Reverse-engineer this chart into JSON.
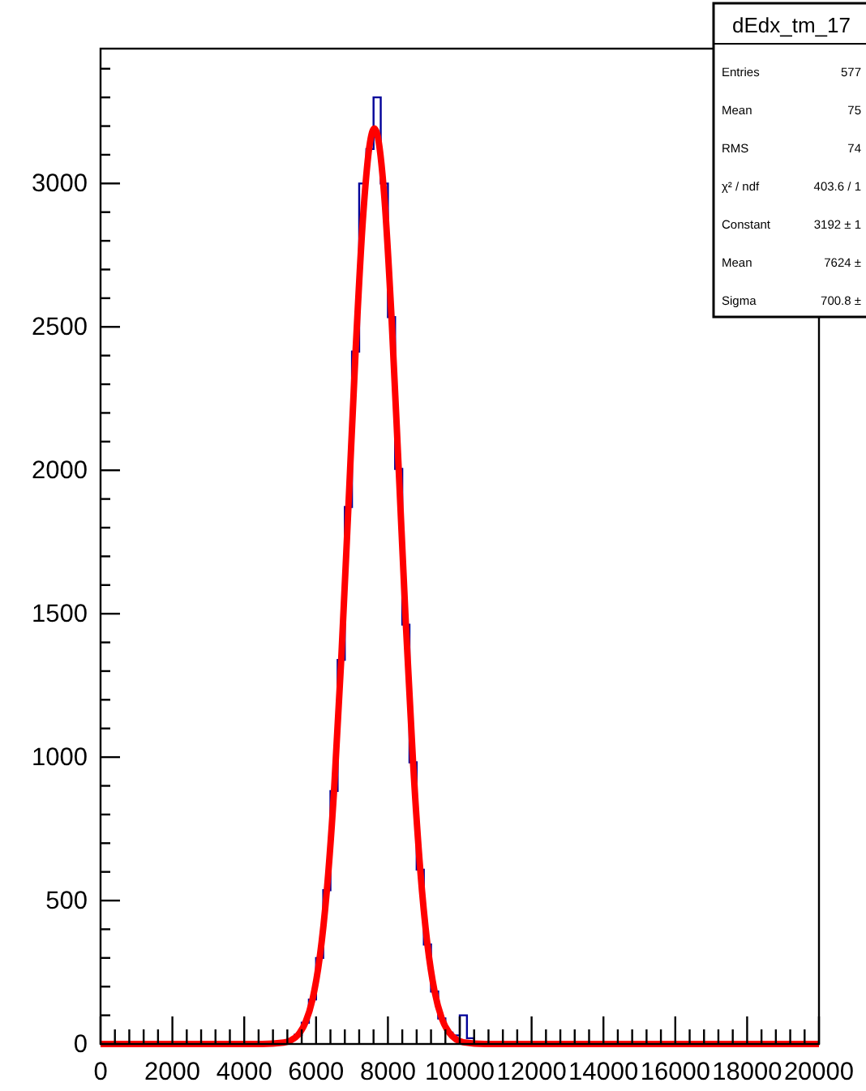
{
  "chart_data": {
    "type": "histogram",
    "bins": [
      0,
      200,
      400,
      600,
      800,
      1000,
      1200,
      1400,
      1600,
      1800,
      2000,
      2200,
      2400,
      2600,
      2800,
      3000,
      3200,
      3400,
      3600,
      3800,
      4000,
      4200,
      4400,
      4600,
      4800,
      5000,
      5200,
      5400,
      5600,
      5800,
      6000,
      6200,
      6400,
      6600,
      6800,
      7000,
      7200,
      7400,
      7600,
      7800,
      8000,
      8200,
      8400,
      8600,
      8800,
      9000,
      9200,
      9400,
      9600,
      9800,
      10000,
      10200,
      10400,
      10600,
      10800,
      11000,
      11200,
      11400,
      11600,
      11800,
      12000,
      12200,
      12400,
      12600,
      12800,
      13000,
      13200,
      13400,
      13600,
      13800,
      14000,
      14200,
      14400,
      14600,
      14800,
      15000,
      15200,
      15400,
      15600,
      15800,
      16000,
      16200,
      16400,
      16600,
      16800,
      17000,
      17200,
      17400,
      17600,
      17800,
      18000,
      18200,
      18400,
      18600,
      18800,
      19000,
      19200,
      19400,
      19600,
      19800,
      20000
    ],
    "series": [
      {
        "color": "#000099",
        "values": [
          0,
          0,
          0,
          0,
          0,
          0,
          0,
          0,
          0,
          0,
          0,
          0,
          0,
          0,
          0,
          0,
          0,
          0,
          0,
          0,
          0,
          0,
          0,
          0,
          0,
          5,
          13,
          32,
          74,
          155,
          300,
          536,
          882,
          1339,
          1872,
          2414,
          3000,
          3120,
          3300,
          3000,
          2534,
          2005,
          1462,
          982,
          608,
          347,
          183,
          89,
          40,
          30,
          100,
          20,
          0,
          0,
          0,
          0,
          0,
          0,
          0,
          0,
          0,
          0,
          0,
          0,
          0,
          0,
          0,
          0,
          0,
          0,
          0,
          0,
          0,
          0,
          0,
          0,
          0,
          0,
          0,
          0,
          0,
          0,
          0,
          0,
          0,
          0,
          0,
          0,
          0,
          0,
          0,
          0,
          0,
          0,
          0,
          0,
          0,
          0,
          0,
          0
        ]
      },
      {
        "type": "line",
        "color": "#ff0000",
        "x": [
          0,
          4500,
          5100,
          5300,
          5500,
          5700,
          5900,
          6100,
          6300,
          6500,
          6700,
          6900,
          7100,
          7300,
          7500,
          7624,
          7700,
          7900,
          8100,
          8300,
          8500,
          8700,
          8900,
          9100,
          9300,
          9500,
          9700,
          9900,
          10100,
          10700,
          20000
        ],
        "values": [
          0,
          0,
          5,
          13,
          32,
          74,
          155,
          300,
          536,
          882,
          1339,
          1872,
          2414,
          2868,
          3142,
          3192,
          3173,
          2954,
          2534,
          2005,
          1462,
          982,
          608,
          347,
          183,
          89,
          40,
          16,
          6,
          0,
          0
        ]
      }
    ],
    "xlim": [
      0,
      20000
    ],
    "xticks": [
      0,
      {
        "value": 400,
        "label": null
      },
      {
        "value": 800,
        "label": null
      },
      {
        "value": 1200,
        "label": null
      },
      {
        "value": 1600,
        "label": null
      },
      2000,
      {
        "value": 2400,
        "label": null
      },
      {
        "value": 2800,
        "label": null
      },
      {
        "value": 3200,
        "label": null
      },
      {
        "value": 3600,
        "label": null
      },
      4000,
      {
        "value": 4400,
        "label": null
      },
      {
        "value": 4800,
        "label": null
      },
      {
        "value": 5200,
        "label": null
      },
      {
        "value": 5600,
        "label": null
      },
      6000,
      {
        "value": 6400,
        "label": null
      },
      {
        "value": 6800,
        "label": null
      },
      {
        "value": 7200,
        "label": null
      },
      {
        "value": 7600,
        "label": null
      },
      8000,
      {
        "value": 8400,
        "label": null
      },
      {
        "value": 8800,
        "label": null
      },
      {
        "value": 9200,
        "label": null
      },
      {
        "value": 9600,
        "label": null
      },
      10000,
      {
        "value": 10400,
        "label": null
      },
      {
        "value": 10800,
        "label": null
      },
      {
        "value": 11200,
        "label": null
      },
      {
        "value": 11600,
        "label": null
      },
      12000,
      {
        "value": 12400,
        "label": null
      },
      {
        "value": 12800,
        "label": null
      },
      {
        "value": 13200,
        "label": null
      },
      {
        "value": 13600,
        "label": null
      },
      14000,
      {
        "value": 14400,
        "label": null
      },
      {
        "value": 14800,
        "label": null
      },
      {
        "value": 15200,
        "label": null
      },
      {
        "value": 15600,
        "label": null
      },
      16000,
      {
        "value": 16400,
        "label": null
      },
      {
        "value": 16800,
        "label": null
      },
      {
        "value": 17200,
        "label": null
      },
      {
        "value": 17600,
        "label": null
      },
      18000,
      {
        "value": 18400,
        "label": null
      },
      {
        "value": 18800,
        "label": null
      },
      {
        "value": 19200,
        "label": null
      },
      {
        "value": 19600,
        "label": null
      },
      20000
    ],
    "ylim": [
      0,
      3470
    ],
    "yticks": [
      0,
      {
        "value": 100,
        "label": null
      },
      {
        "value": 200,
        "label": null
      },
      {
        "value": 300,
        "label": null
      },
      {
        "value": 400,
        "label": null
      },
      500,
      {
        "value": 600,
        "label": null
      },
      {
        "value": 700,
        "label": null
      },
      {
        "value": 800,
        "label": null
      },
      {
        "value": 900,
        "label": null
      },
      1000,
      {
        "value": 1100,
        "label": null
      },
      {
        "value": 1200,
        "label": null
      },
      {
        "value": 1300,
        "label": null
      },
      {
        "value": 1400,
        "label": null
      },
      1500,
      {
        "value": 1600,
        "label": null
      },
      {
        "value": 1700,
        "label": null
      },
      {
        "value": 1800,
        "label": null
      },
      {
        "value": 1900,
        "label": null
      },
      2000,
      {
        "value": 2100,
        "label": null
      },
      {
        "value": 2200,
        "label": null
      },
      {
        "value": 2300,
        "label": null
      },
      {
        "value": 2400,
        "label": null
      },
      2500,
      {
        "value": 2600,
        "label": null
      },
      {
        "value": 2700,
        "label": null
      },
      {
        "value": 2800,
        "label": null
      },
      {
        "value": 2900,
        "label": null
      },
      3000,
      {
        "value": 3100,
        "label": null
      },
      {
        "value": 3200,
        "label": null
      },
      {
        "value": 3300,
        "label": null
      },
      {
        "value": 3400,
        "label": null
      }
    ],
    "legend_title": "dEdx_tm_17",
    "annotations": [
      "Entries",
      "577",
      "Mean",
      "75",
      "RMS",
      "74",
      "χ² / ndf",
      "403.6 / 1",
      "Constant",
      "3192 ± 1",
      "Mean",
      "7624 ±",
      "Sigma",
      "700.8 ±"
    ]
  }
}
